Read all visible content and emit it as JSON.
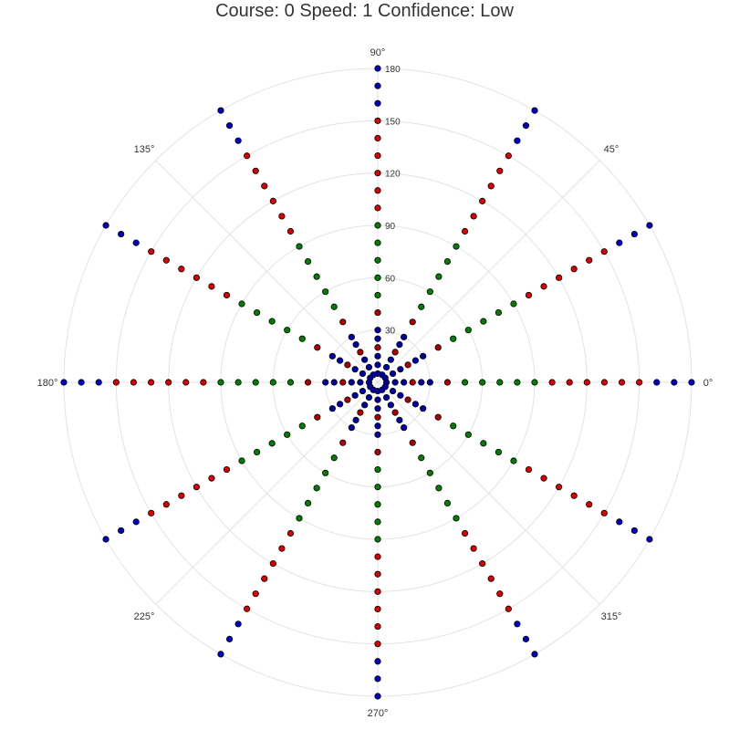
{
  "chart_data": {
    "type": "scatter",
    "projection": "polar",
    "title": "Course: 0 Speed: 1 Confidence: Low",
    "radial_ticks": [
      "30",
      "60",
      "90",
      "120",
      "150",
      "180"
    ],
    "radial_tick_values": [
      30,
      60,
      90,
      120,
      150,
      180
    ],
    "r_max": 180,
    "angle_ticks": [
      {
        "deg": 0,
        "label": "0°"
      },
      {
        "deg": 45,
        "label": "45°"
      },
      {
        "deg": 90,
        "label": "90°"
      },
      {
        "deg": 135,
        "label": "135°"
      },
      {
        "deg": 180,
        "label": "180°"
      },
      {
        "deg": 225,
        "label": "225°"
      },
      {
        "deg": 270,
        "label": "270°"
      },
      {
        "deg": 315,
        "label": "315°"
      }
    ],
    "grid": true,
    "point_angles_deg": [
      0,
      30,
      60,
      90,
      120,
      150,
      180,
      210,
      240,
      270,
      300,
      330
    ],
    "point_radii": [
      5,
      10,
      15,
      20,
      25,
      30,
      40,
      50,
      60,
      70,
      80,
      90,
      100,
      110,
      120,
      130,
      140,
      150,
      160,
      170,
      180
    ],
    "point_color_rule": [
      {
        "r_max": 15,
        "color": "#0000a8"
      },
      {
        "r_max": 20,
        "color": "#b00000"
      },
      {
        "r_max": 30,
        "color": "#0000a8"
      },
      {
        "r_max": 40,
        "color": "#b00000"
      },
      {
        "r_max": 90,
        "color": "#008000"
      },
      {
        "r_max": 150,
        "color": "#dd0000"
      },
      {
        "r_max": 180,
        "color": "#0000c8"
      }
    ],
    "axis_radial_diagonal_color": "#0000a0",
    "grid_color": "#e3e3e3"
  }
}
